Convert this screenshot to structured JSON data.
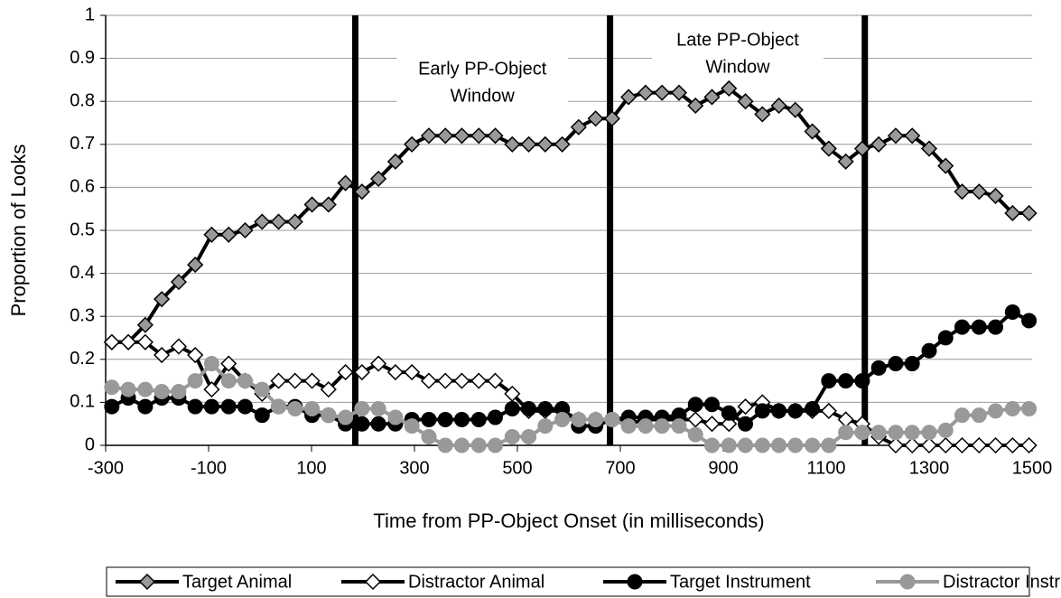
{
  "chart_data": {
    "type": "line",
    "xlabel": "Time from PP-Object Onset (in milliseconds)",
    "ylabel": "Proportion of Looks",
    "x": [
      -288,
      -256,
      -223,
      -191,
      -158,
      -126,
      -94,
      -61,
      -29,
      4,
      36,
      68,
      101,
      133,
      166,
      198,
      230,
      263,
      295,
      328,
      360,
      392,
      425,
      457,
      490,
      522,
      554,
      587,
      619,
      652,
      684,
      716,
      749,
      781,
      814,
      846,
      878,
      911,
      943,
      976,
      1008,
      1040,
      1073,
      1105,
      1138,
      1170,
      1202,
      1235,
      1267,
      1300,
      1332,
      1364,
      1397,
      1429,
      1462,
      1494
    ],
    "series": [
      {
        "name": "Target Animal",
        "color": "#000000",
        "marker": "diamond",
        "fill": "#999999",
        "values": [
          0.24,
          0.24,
          0.28,
          0.34,
          0.38,
          0.42,
          0.49,
          0.49,
          0.5,
          0.52,
          0.52,
          0.52,
          0.56,
          0.56,
          0.61,
          0.59,
          0.62,
          0.66,
          0.7,
          0.72,
          0.72,
          0.72,
          0.72,
          0.72,
          0.7,
          0.7,
          0.7,
          0.7,
          0.74,
          0.76,
          0.76,
          0.81,
          0.82,
          0.82,
          0.82,
          0.79,
          0.81,
          0.83,
          0.8,
          0.77,
          0.79,
          0.78,
          0.73,
          0.69,
          0.66,
          0.69,
          0.7,
          0.72,
          0.72,
          0.69,
          0.65,
          0.59,
          0.59,
          0.58,
          0.54,
          0.54
        ]
      },
      {
        "name": "Distractor Animal",
        "color": "#000000",
        "marker": "diamond",
        "fill": "#ffffff",
        "values": [
          0.24,
          0.24,
          0.24,
          0.21,
          0.23,
          0.21,
          0.13,
          0.19,
          0.15,
          0.12,
          0.15,
          0.15,
          0.15,
          0.13,
          0.17,
          0.17,
          0.19,
          0.17,
          0.17,
          0.15,
          0.15,
          0.15,
          0.15,
          0.15,
          0.12,
          0.08,
          0.08,
          0.08,
          0.06,
          0.06,
          0.06,
          0.05,
          0.06,
          0.06,
          0.06,
          0.06,
          0.05,
          0.05,
          0.09,
          0.1,
          0.08,
          0.08,
          0.08,
          0.08,
          0.06,
          0.05,
          0.02,
          0,
          0,
          0,
          0,
          0,
          0,
          0,
          0,
          0
        ]
      },
      {
        "name": "Target Instrument",
        "color": "#000000",
        "marker": "circle",
        "fill": "#000000",
        "values": [
          0.09,
          0.11,
          0.09,
          0.11,
          0.11,
          0.09,
          0.09,
          0.09,
          0.09,
          0.07,
          0.09,
          0.09,
          0.07,
          0.07,
          0.05,
          0.05,
          0.05,
          0.05,
          0.06,
          0.06,
          0.06,
          0.06,
          0.06,
          0.065,
          0.085,
          0.085,
          0.085,
          0.085,
          0.045,
          0.045,
          0.06,
          0.065,
          0.065,
          0.065,
          0.07,
          0.095,
          0.095,
          0.075,
          0.05,
          0.08,
          0.08,
          0.08,
          0.085,
          0.15,
          0.15,
          0.15,
          0.18,
          0.19,
          0.19,
          0.22,
          0.25,
          0.275,
          0.275,
          0.275,
          0.31,
          0.29
        ]
      },
      {
        "name": "Distractor Instrument",
        "color": "#999999",
        "marker": "circle",
        "fill": "#999999",
        "values": [
          0.135,
          0.13,
          0.13,
          0.125,
          0.125,
          0.15,
          0.19,
          0.15,
          0.15,
          0.13,
          0.09,
          0.085,
          0.085,
          0.07,
          0.065,
          0.085,
          0.085,
          0.065,
          0.045,
          0.02,
          0,
          0,
          0,
          0,
          0.02,
          0.02,
          0.045,
          0.06,
          0.06,
          0.06,
          0.06,
          0.045,
          0.045,
          0.045,
          0.045,
          0.025,
          0,
          0,
          0,
          0,
          0,
          0,
          0,
          0,
          0.03,
          0.03,
          0.03,
          0.03,
          0.03,
          0.03,
          0.035,
          0.07,
          0.07,
          0.08,
          0.085,
          0.085
        ]
      }
    ],
    "vlines": [
      185,
      680,
      1175
    ],
    "annotations": [
      {
        "lines": [
          "Early PP-Object",
          "Window"
        ],
        "x": 432
      },
      {
        "lines": [
          "Late PP-Object",
          "Window"
        ],
        "x": 928
      }
    ],
    "xlim": [
      -300,
      1500
    ],
    "xticks": [
      -300,
      -100,
      100,
      300,
      500,
      700,
      900,
      1100,
      1300,
      1500
    ],
    "ylim": [
      0,
      1
    ],
    "yticks": [
      0,
      0.1,
      0.2,
      0.3,
      0.4,
      0.5,
      0.6,
      0.7,
      0.8,
      0.9,
      1
    ],
    "grid": true,
    "legend": "bottom"
  }
}
